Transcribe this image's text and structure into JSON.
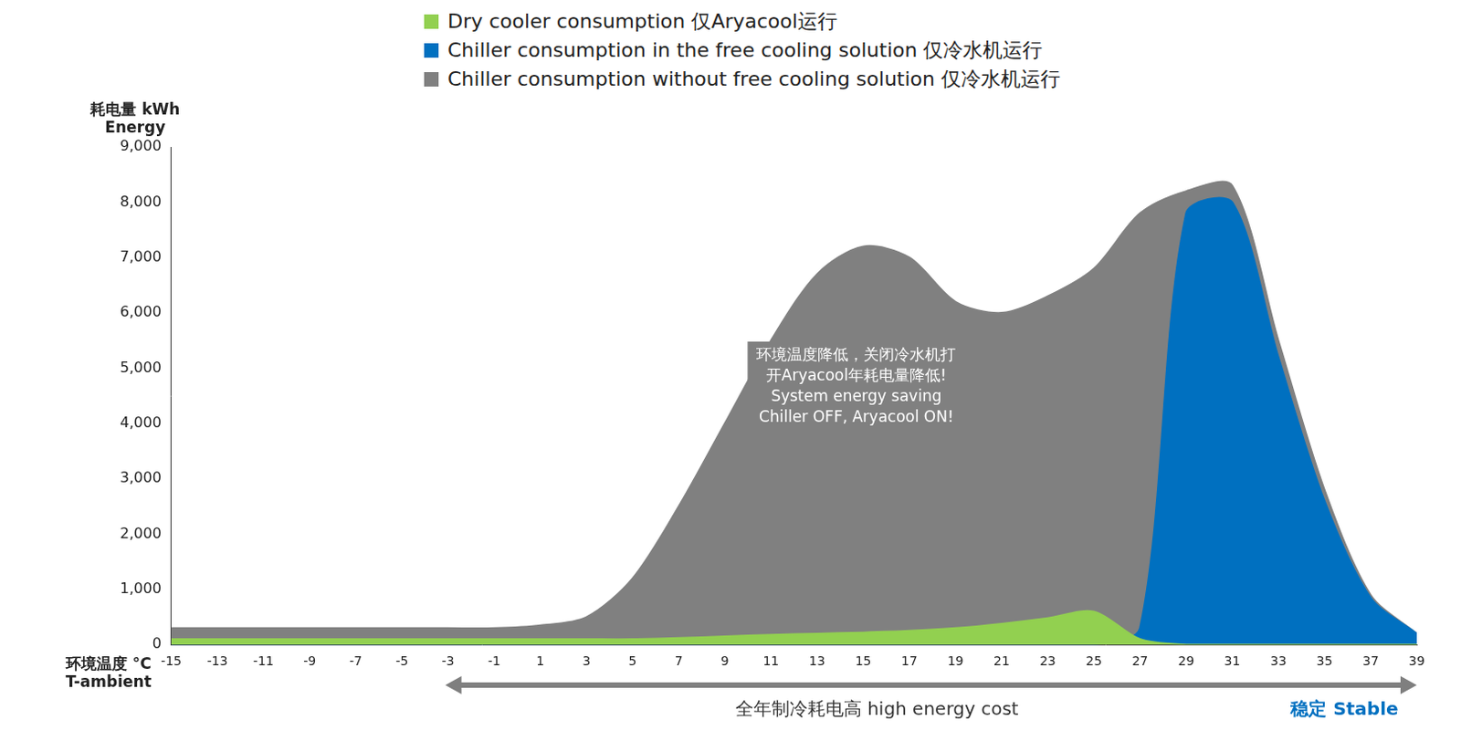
{
  "chart_data": {
    "type": "area",
    "x": [
      -15,
      -13,
      -11,
      -9,
      -7,
      -5,
      -3,
      -1,
      1,
      3,
      5,
      7,
      9,
      11,
      13,
      15,
      17,
      19,
      21,
      23,
      25,
      27,
      29,
      31,
      33,
      35,
      37,
      39
    ],
    "series": [
      {
        "name": "Dry cooler consumption 仅Aryacool运行",
        "color": "#92d050",
        "values": [
          100,
          100,
          100,
          100,
          100,
          100,
          100,
          100,
          100,
          100,
          100,
          120,
          150,
          180,
          200,
          220,
          250,
          300,
          380,
          480,
          600,
          100,
          0,
          0,
          0,
          0,
          0,
          0
        ]
      },
      {
        "name": "Chiller consumption in the free cooling solution 仅冷水机运行",
        "color": "#0070c0",
        "values": [
          0,
          0,
          0,
          0,
          0,
          0,
          0,
          0,
          0,
          0,
          0,
          0,
          0,
          0,
          0,
          0,
          0,
          0,
          0,
          0,
          0,
          300,
          7800,
          8000,
          5200,
          2600,
          850,
          200
        ]
      },
      {
        "name": "Chiller consumption without free cooling solution 仅冷水机运行",
        "color": "#808080",
        "values": [
          300,
          300,
          300,
          300,
          300,
          300,
          300,
          300,
          350,
          500,
          1200,
          2500,
          4000,
          5500,
          6700,
          7200,
          7000,
          6200,
          6000,
          6300,
          6800,
          7800,
          8200,
          8300,
          5500,
          2800,
          900,
          200
        ]
      }
    ],
    "y_label": [
      "耗电量 kWh",
      "Energy"
    ],
    "x_label": [
      "环境温度 °C",
      "T-ambient"
    ],
    "annotation": [
      "环境温度降低，关闭冷水机打",
      "开Aryacool年耗电量降低!",
      "System energy saving",
      "Chiller OFF, Aryacool ON!"
    ],
    "arrow_labels": [
      "全年制冷耗电高 high energy cost",
      "稳定 Stable"
    ],
    "xlim": [
      -15,
      39
    ],
    "xticks": [
      -15,
      -13,
      -11,
      -9,
      -7,
      -5,
      -3,
      -1,
      1,
      3,
      5,
      7,
      9,
      11,
      13,
      15,
      17,
      19,
      21,
      23,
      25,
      27,
      29,
      31,
      33,
      35,
      37,
      39
    ],
    "ylim": [
      0,
      9000
    ],
    "yticks": [
      0,
      {
        "value": 1000,
        "label": "1,000"
      },
      {
        "value": 2000,
        "label": "2,000"
      },
      {
        "value": 3000,
        "label": "3,000"
      },
      {
        "value": 4000,
        "label": "4,000"
      },
      {
        "value": 5000,
        "label": "5,000"
      },
      {
        "value": 6000,
        "label": "6,000"
      },
      {
        "value": 7000,
        "label": "7,000"
      },
      {
        "value": 8000,
        "label": "8,000"
      },
      {
        "value": 9000,
        "label": "9,000"
      }
    ],
    "legend": "top",
    "grid": false
  }
}
